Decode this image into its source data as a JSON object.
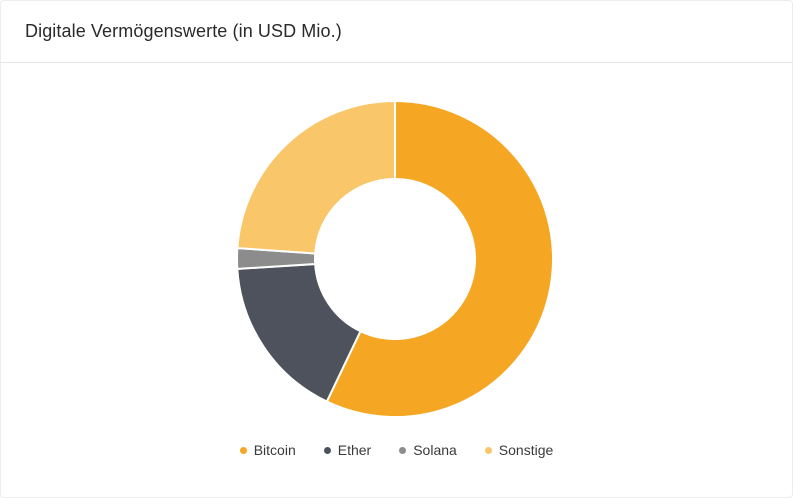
{
  "card": {
    "title": "Digitale Vermögenswerte (in USD Mio.)"
  },
  "chart_data": {
    "type": "pie",
    "variant": "donut",
    "title": "Digitale Vermögenswerte (in USD Mio.)",
    "categories": [
      "Bitcoin",
      "Ether",
      "Solana",
      "Sonstige"
    ],
    "values": [
      57.1,
      16.9,
      2.1,
      23.9
    ],
    "colors": [
      "#F5A623",
      "#4E525C",
      "#8C8C8C",
      "#F9C76A"
    ],
    "legend_position": "bottom",
    "start_angle": "top",
    "direction": "clockwise"
  }
}
